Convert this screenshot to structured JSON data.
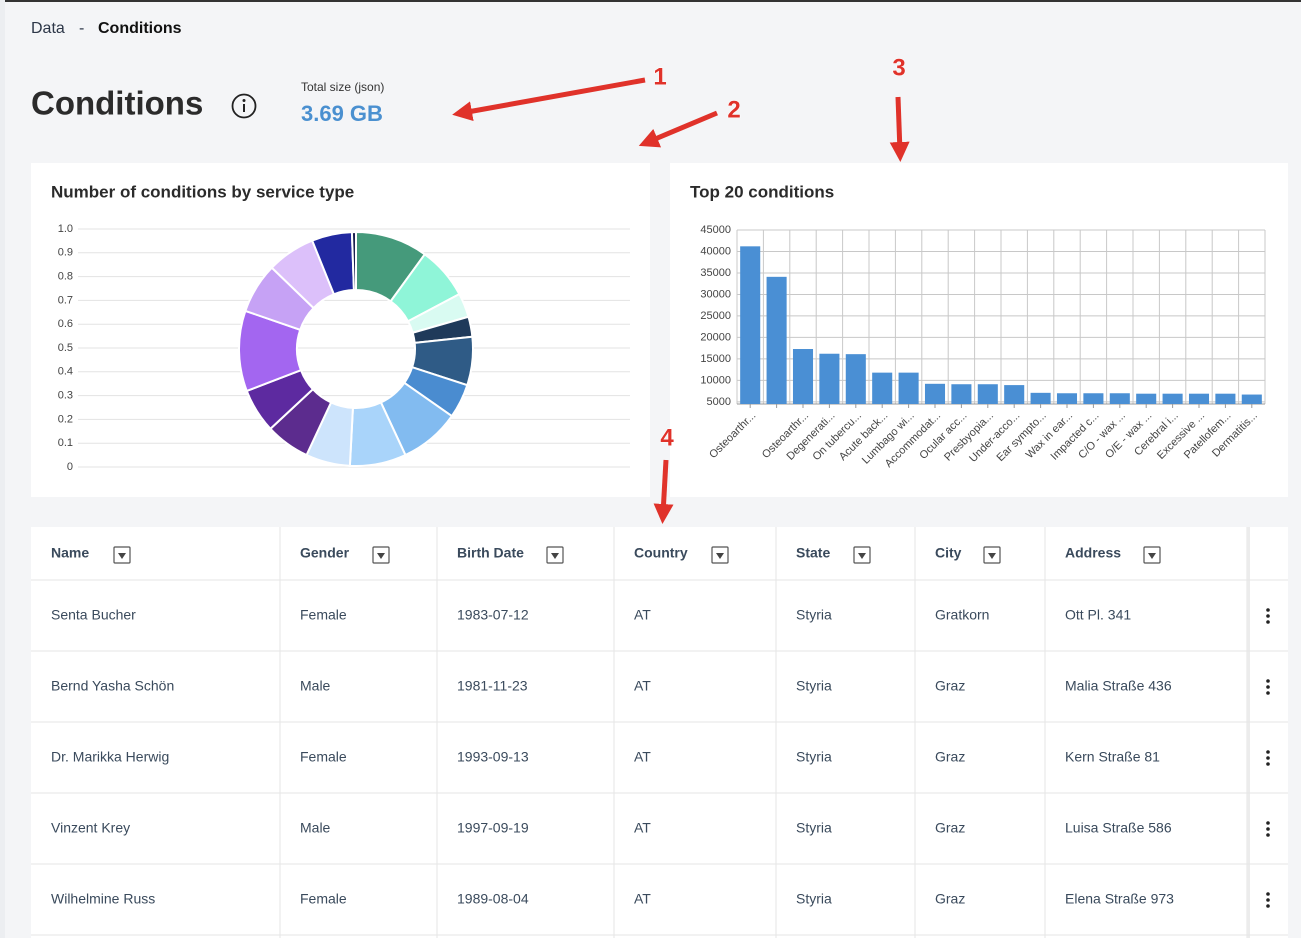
{
  "breadcrumb": {
    "parent": "Data",
    "separator": "-",
    "current": "Conditions"
  },
  "header": {
    "title": "Conditions",
    "size_label": "Total size (json)",
    "size_value": "3.69 GB"
  },
  "annotations": [
    "1",
    "2",
    "3",
    "4"
  ],
  "chart_data": [
    {
      "type": "donut",
      "title": "Number of conditions by service type",
      "values": [
        36,
        26,
        12,
        10,
        24,
        17,
        30,
        28,
        22,
        22,
        22,
        40,
        25,
        24,
        20,
        2
      ],
      "colors": [
        "#459a7b",
        "#8ff5d8",
        "#d9fbf2",
        "#1f3a5a",
        "#2f5b86",
        "#4a8cd0",
        "#82bbf0",
        "#a9d4fa",
        "#cde4fc",
        "#5c2c8e",
        "#5d2aa0",
        "#a366f0",
        "#c6a2f5",
        "#dcc0fa",
        "#2229a0",
        "#1a2050"
      ],
      "ylim": [
        0,
        1
      ],
      "yticks": [
        0,
        0.1,
        0.2,
        0.3,
        0.4,
        0.5,
        0.6,
        0.7,
        0.8,
        0.9,
        {
          "value": 1,
          "label": "1.0"
        }
      ],
      "grid": true
    },
    {
      "type": "bar",
      "title": "Top 20 conditions",
      "categories": [
        "Osteoarthr...",
        null,
        "Osteoarthr...",
        "Degenerati...",
        "On tubercu...",
        "Acute back...",
        "Lumbago wi...",
        "Accommodat...",
        "Ocular acc...",
        "Presbyopia...",
        "Under-acco...",
        "Ear sympto...",
        "Wax in ear...",
        "Impacted c...",
        "C/O - wax ...",
        "O/E - wax ...",
        "Cerebral i...",
        "Excessive ...",
        "Patellofem...",
        "Dermatitis..."
      ],
      "values": [
        41200,
        34100,
        17300,
        16200,
        16100,
        11800,
        11800,
        9200,
        9100,
        9100,
        8900,
        7100,
        7000,
        7000,
        7000,
        6900,
        6900,
        6900,
        6900,
        6700
      ],
      "color": "#4a8fd4",
      "ylim": [
        4500,
        45000
      ],
      "yticks": [
        5000,
        10000,
        15000,
        20000,
        25000,
        30000,
        35000,
        40000,
        45000
      ],
      "grid": true
    }
  ],
  "table": {
    "columns": [
      "Name",
      "Gender",
      "Birth Date",
      "Country",
      "State",
      "City",
      "Address"
    ],
    "rows": [
      [
        "Senta Bucher",
        "Female",
        "1983-07-12",
        "AT",
        "Styria",
        "Gratkorn",
        "Ott Pl. 341"
      ],
      [
        "Bernd Yasha Schön",
        "Male",
        "1981-11-23",
        "AT",
        "Styria",
        "Graz",
        "Malia Straße 436"
      ],
      [
        "Dr. Marikka Herwig",
        "Female",
        "1993-09-13",
        "AT",
        "Styria",
        "Graz",
        "Kern Straße 81"
      ],
      [
        "Vinzent Krey",
        "Male",
        "1997-09-19",
        "AT",
        "Styria",
        "Graz",
        "Luisa Straße 586"
      ],
      [
        "Wilhelmine Russ",
        "Female",
        "1989-08-04",
        "AT",
        "Styria",
        "Graz",
        "Elena Straße 973"
      ]
    ]
  }
}
